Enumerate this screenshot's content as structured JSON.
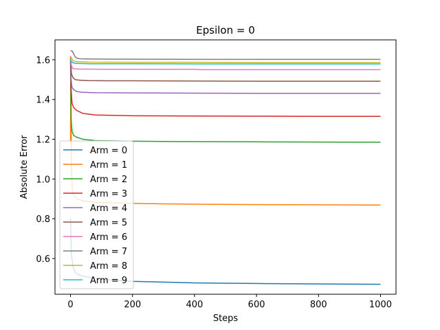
{
  "chart_data": {
    "type": "line",
    "title": "Epsilon = 0",
    "xlabel": "Steps",
    "ylabel": "Absolute Error",
    "xlim": [
      -50,
      1050
    ],
    "ylim": [
      0.42,
      1.7
    ],
    "xticks": [
      0,
      200,
      400,
      600,
      800,
      1000
    ],
    "yticks": [
      0.6,
      0.8,
      1.0,
      1.2,
      1.4,
      1.6
    ],
    "xtick_labels": [
      "0",
      "200",
      "400",
      "600",
      "800",
      "1000"
    ],
    "ytick_labels": [
      "0.6",
      "0.8",
      "1.0",
      "1.2",
      "1.4",
      "1.6"
    ],
    "grid": false,
    "legend_position": "lower-left",
    "series": [
      {
        "name": "Arm = 0",
        "color": "#1f77b4",
        "x": [
          0,
          3,
          8,
          15,
          30,
          60,
          100,
          200,
          400,
          600,
          800,
          1000
        ],
        "y": [
          0.8,
          0.62,
          0.56,
          0.53,
          0.515,
          0.505,
          0.495,
          0.485,
          0.477,
          0.474,
          0.472,
          0.47
        ]
      },
      {
        "name": "Arm = 1",
        "color": "#ff7f0e",
        "x": [
          0,
          1,
          3,
          6,
          10,
          20,
          40,
          80,
          200,
          400,
          600,
          800,
          1000
        ],
        "y": [
          1.18,
          1.58,
          1.05,
          0.95,
          0.92,
          0.9,
          0.89,
          0.882,
          0.877,
          0.873,
          0.871,
          0.87,
          0.869
        ]
      },
      {
        "name": "Arm = 2",
        "color": "#2ca02c",
        "x": [
          0,
          2,
          5,
          10,
          20,
          40,
          80,
          200,
          400,
          600,
          800,
          1000
        ],
        "y": [
          1.59,
          1.3,
          1.24,
          1.22,
          1.21,
          1.2,
          1.193,
          1.19,
          1.188,
          1.187,
          1.186,
          1.185
        ]
      },
      {
        "name": "Arm = 3",
        "color": "#d62728",
        "x": [
          0,
          2,
          5,
          10,
          20,
          40,
          80,
          200,
          400,
          600,
          800,
          1000
        ],
        "y": [
          1.61,
          1.45,
          1.38,
          1.36,
          1.345,
          1.33,
          1.322,
          1.318,
          1.317,
          1.316,
          1.315,
          1.315
        ]
      },
      {
        "name": "Arm = 4",
        "color": "#9467bd",
        "x": [
          0,
          2,
          5,
          10,
          20,
          40,
          80,
          200,
          400,
          600,
          800,
          1000
        ],
        "y": [
          1.61,
          1.5,
          1.46,
          1.45,
          1.44,
          1.436,
          1.434,
          1.433,
          1.432,
          1.431,
          1.431,
          1.431
        ]
      },
      {
        "name": "Arm = 5",
        "color": "#8c564b",
        "x": [
          0,
          3,
          8,
          15,
          30,
          60,
          120,
          200,
          400,
          600,
          800,
          1000
        ],
        "y": [
          1.61,
          1.53,
          1.51,
          1.5,
          1.497,
          1.495,
          1.494,
          1.494,
          1.493,
          1.492,
          1.492,
          1.492
        ]
      },
      {
        "name": "Arm = 6",
        "color": "#e377c2",
        "x": [
          0,
          3,
          8,
          15,
          30,
          60,
          120,
          200,
          400,
          420,
          600,
          800,
          1000
        ],
        "y": [
          1.62,
          1.57,
          1.555,
          1.554,
          1.553,
          1.553,
          1.552,
          1.552,
          1.552,
          1.55,
          1.55,
          1.55,
          1.55
        ]
      },
      {
        "name": "Arm = 7",
        "color": "#7f7f7f",
        "x": [
          0,
          5,
          10,
          15,
          20,
          30,
          60,
          120,
          400,
          600,
          800,
          1000
        ],
        "y": [
          1.645,
          1.645,
          1.63,
          1.615,
          1.608,
          1.605,
          1.604,
          1.603,
          1.602,
          1.602,
          1.602,
          1.602
        ]
      },
      {
        "name": "Arm = 8",
        "color": "#bcbd22",
        "x": [
          0,
          3,
          8,
          20,
          60,
          200,
          400,
          600,
          800,
          1000
        ],
        "y": [
          1.6,
          1.61,
          1.595,
          1.59,
          1.588,
          1.587,
          1.587,
          1.586,
          1.586,
          1.586
        ]
      },
      {
        "name": "Arm = 9",
        "color": "#17becf",
        "x": [
          0,
          3,
          8,
          15,
          30,
          60,
          200,
          400,
          600,
          800,
          1000
        ],
        "y": [
          1.6,
          1.59,
          1.585,
          1.582,
          1.581,
          1.58,
          1.58,
          1.579,
          1.579,
          1.579,
          1.579
        ]
      }
    ]
  }
}
